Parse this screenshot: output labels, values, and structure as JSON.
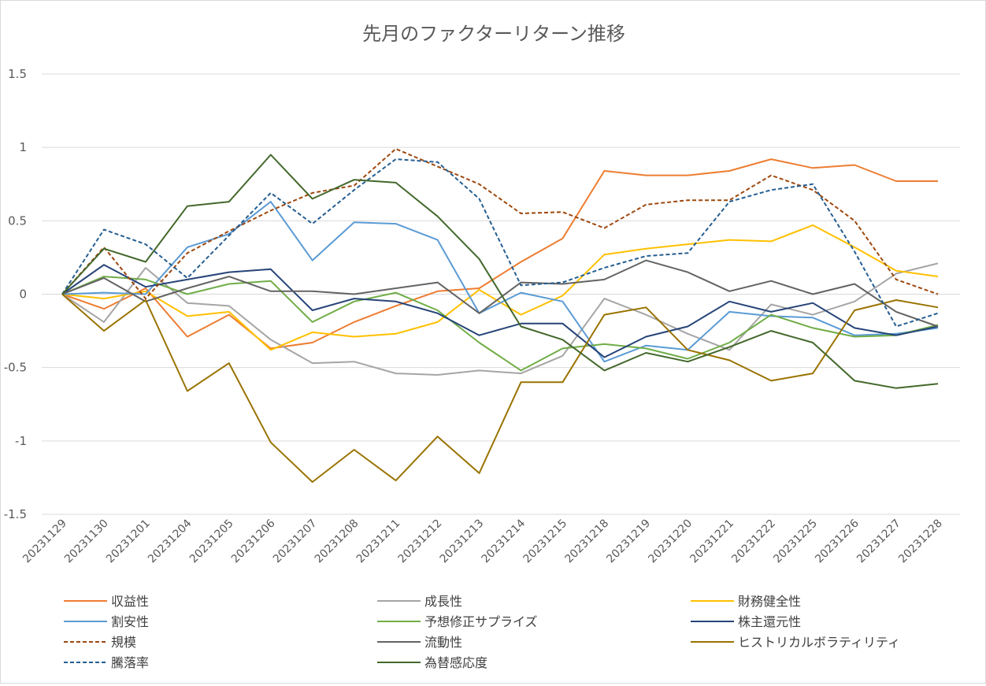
{
  "chart_data": {
    "type": "line",
    "title": "先月のファクターリターン推移",
    "xlabel": "",
    "ylabel": "",
    "ylim": [
      -1.5,
      1.5
    ],
    "yticks": [
      "1.5",
      "1",
      "0.5",
      "0",
      "-0.5",
      "-1",
      "-1.5"
    ],
    "ytick_values": [
      1.5,
      1,
      0.5,
      0,
      -0.5,
      -1,
      -1.5
    ],
    "grid": true,
    "legend_position": "bottom",
    "categories": [
      "20231129",
      "20231130",
      "20231201",
      "20231204",
      "20231205",
      "20231206",
      "20231207",
      "20231208",
      "20231211",
      "20231212",
      "20231213",
      "20231214",
      "20231215",
      "20231218",
      "20231219",
      "20231220",
      "20231221",
      "20231222",
      "20231225",
      "20231226",
      "20231227",
      "20231228"
    ],
    "series": [
      {
        "name": "収益性",
        "color": "#ED7D31",
        "dash": "solid",
        "values": [
          0,
          -0.1,
          0.04,
          -0.29,
          -0.14,
          -0.37,
          -0.33,
          -0.19,
          -0.08,
          0.02,
          0.04,
          0.22,
          0.38,
          0.84,
          0.81,
          0.81,
          0.84,
          0.92,
          0.86,
          0.88,
          0.77,
          0.77
        ]
      },
      {
        "name": "成長性",
        "color": "#A5A5A5",
        "dash": "solid",
        "values": [
          0,
          -0.19,
          0.18,
          -0.06,
          -0.08,
          -0.31,
          -0.47,
          -0.46,
          -0.54,
          -0.55,
          -0.52,
          -0.54,
          -0.42,
          -0.03,
          -0.14,
          -0.27,
          -0.38,
          -0.07,
          -0.14,
          -0.05,
          0.14,
          0.21
        ]
      },
      {
        "name": "財務健全性",
        "color": "#FFC000",
        "dash": "solid",
        "values": [
          0,
          -0.03,
          0.02,
          -0.15,
          -0.12,
          -0.38,
          -0.26,
          -0.29,
          -0.27,
          -0.19,
          0.03,
          -0.14,
          -0.01,
          0.27,
          0.31,
          0.34,
          0.37,
          0.36,
          0.47,
          0.32,
          0.16,
          0.12
        ]
      },
      {
        "name": "割安性",
        "color": "#5B9BD5",
        "dash": "solid",
        "values": [
          0,
          0.01,
          0.0,
          0.32,
          0.41,
          0.63,
          0.23,
          0.49,
          0.48,
          0.37,
          -0.13,
          0.01,
          -0.05,
          -0.46,
          -0.35,
          -0.38,
          -0.12,
          -0.15,
          -0.16,
          -0.28,
          -0.27,
          -0.23
        ]
      },
      {
        "name": "予想修正サプライズ",
        "color": "#70AD47",
        "dash": "solid",
        "values": [
          0,
          0.12,
          0.1,
          0.0,
          0.07,
          0.09,
          -0.19,
          -0.05,
          0.01,
          -0.11,
          -0.33,
          -0.52,
          -0.37,
          -0.34,
          -0.37,
          -0.44,
          -0.33,
          -0.14,
          -0.23,
          -0.29,
          -0.28,
          -0.21
        ]
      },
      {
        "name": "株主還元性",
        "color": "#264478",
        "dash": "solid",
        "values": [
          0,
          0.2,
          0.05,
          0.1,
          0.15,
          0.17,
          -0.11,
          -0.03,
          -0.05,
          -0.13,
          -0.28,
          -0.2,
          -0.2,
          -0.43,
          -0.29,
          -0.22,
          -0.05,
          -0.12,
          -0.06,
          -0.23,
          -0.28,
          -0.22
        ]
      },
      {
        "name": "規模",
        "color": "#9E480E",
        "dash": "dashed",
        "values": [
          0,
          0.32,
          -0.03,
          0.28,
          0.43,
          0.57,
          0.69,
          0.74,
          0.99,
          0.87,
          0.75,
          0.55,
          0.56,
          0.45,
          0.61,
          0.64,
          0.64,
          0.81,
          0.71,
          0.5,
          0.1,
          0.0
        ]
      },
      {
        "name": "流動性",
        "color": "#636363",
        "dash": "solid",
        "values": [
          0,
          0.11,
          -0.05,
          0.04,
          0.12,
          0.02,
          0.02,
          0.0,
          0.04,
          0.08,
          -0.13,
          0.08,
          0.07,
          0.1,
          0.23,
          0.15,
          0.02,
          0.09,
          0.0,
          0.07,
          -0.12,
          -0.22
        ]
      },
      {
        "name": "ヒストリカルボラティリティ",
        "color": "#997300",
        "dash": "solid",
        "values": [
          0,
          -0.25,
          -0.04,
          -0.66,
          -0.47,
          -1.01,
          -1.28,
          -1.06,
          -1.27,
          -0.97,
          -1.22,
          -0.6,
          -0.6,
          -0.14,
          -0.09,
          -0.38,
          -0.45,
          -0.59,
          -0.54,
          -0.11,
          -0.04,
          -0.09
        ]
      },
      {
        "name": "騰落率",
        "color": "#255E91",
        "dash": "dashed",
        "values": [
          0,
          0.44,
          0.34,
          0.11,
          0.4,
          0.69,
          0.48,
          0.71,
          0.92,
          0.9,
          0.65,
          0.06,
          0.08,
          0.18,
          0.26,
          0.28,
          0.63,
          0.71,
          0.75,
          0.29,
          -0.22,
          -0.13
        ]
      },
      {
        "name": "為替感応度",
        "color": "#43682B",
        "dash": "solid",
        "values": [
          0,
          0.31,
          0.22,
          0.6,
          0.63,
          0.95,
          0.65,
          0.78,
          0.76,
          0.53,
          0.24,
          -0.22,
          -0.31,
          -0.52,
          -0.4,
          -0.46,
          -0.36,
          -0.25,
          -0.33,
          -0.59,
          -0.64,
          -0.61
        ]
      }
    ]
  }
}
